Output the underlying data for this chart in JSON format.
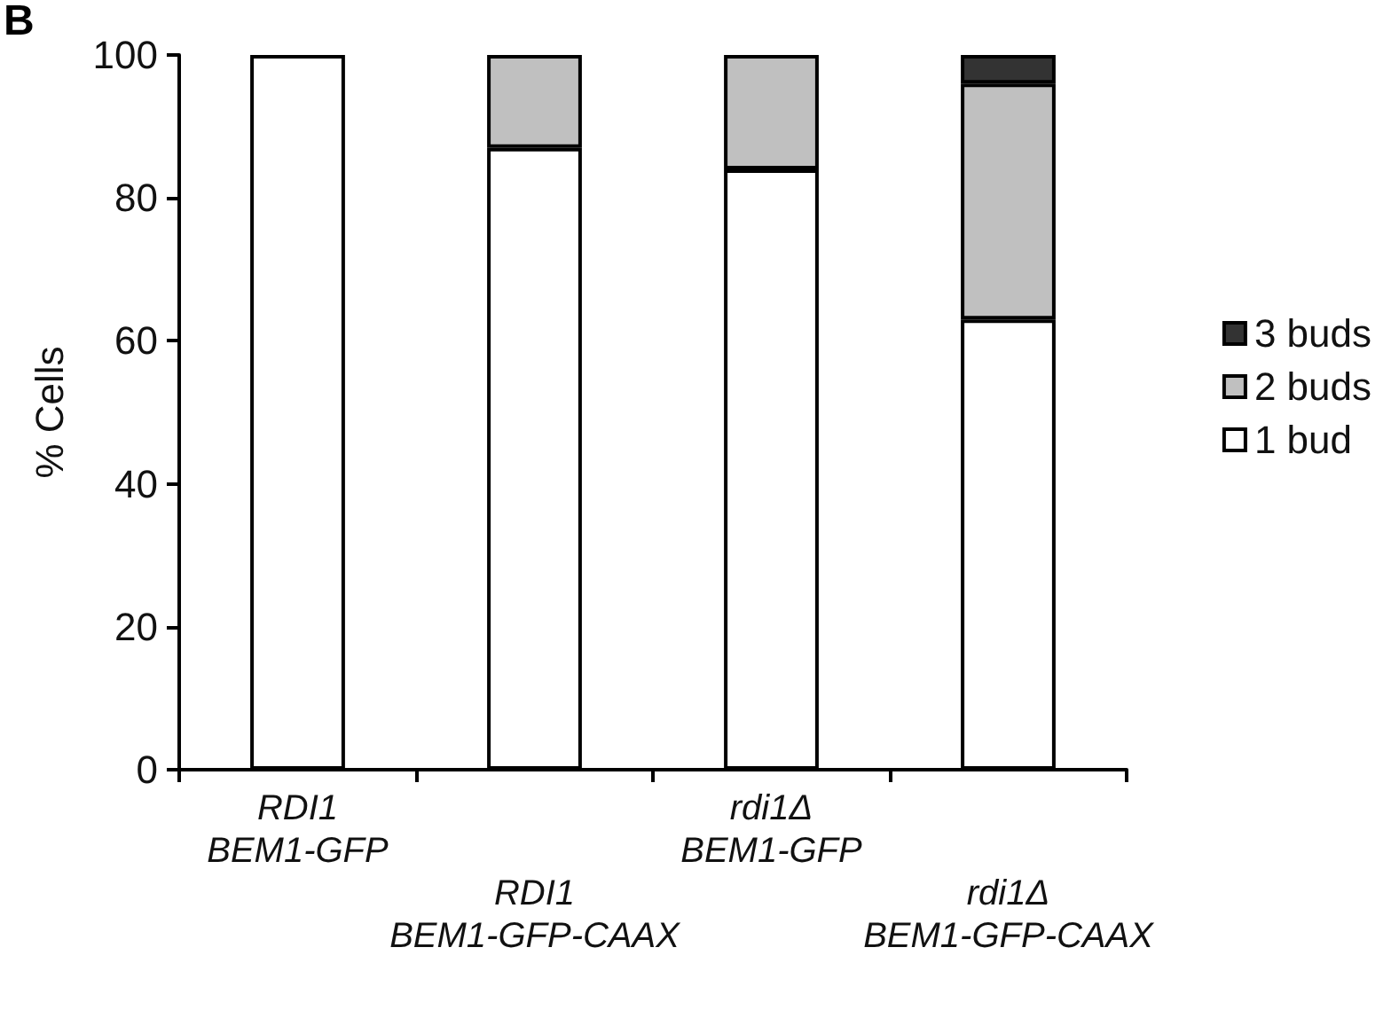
{
  "chart_data": {
    "type": "bar",
    "stacked": true,
    "categories": [
      "RDI1\nBEM1-GFP",
      "RDI1\nBEM1-GFP-CAAX",
      "rdi1Δ\nBEM1-GFP",
      "rdi1Δ\nBEM1-GFP-CAAX"
    ],
    "series": [
      {
        "name": "1 bud",
        "color": "#ffffff",
        "values": [
          100,
          87,
          84,
          63
        ]
      },
      {
        "name": "2 buds",
        "color": "#c0c0c0",
        "values": [
          0,
          13,
          16,
          33
        ]
      },
      {
        "name": "3 buds",
        "color": "#333333",
        "values": [
          0,
          0,
          0,
          4
        ]
      }
    ],
    "ylabel": "% Cells",
    "ylim": [
      0,
      100
    ],
    "yticks": [
      0,
      20,
      40,
      60,
      80,
      100
    ],
    "grid": false,
    "legend": "right",
    "annotations": [
      "B"
    ]
  }
}
